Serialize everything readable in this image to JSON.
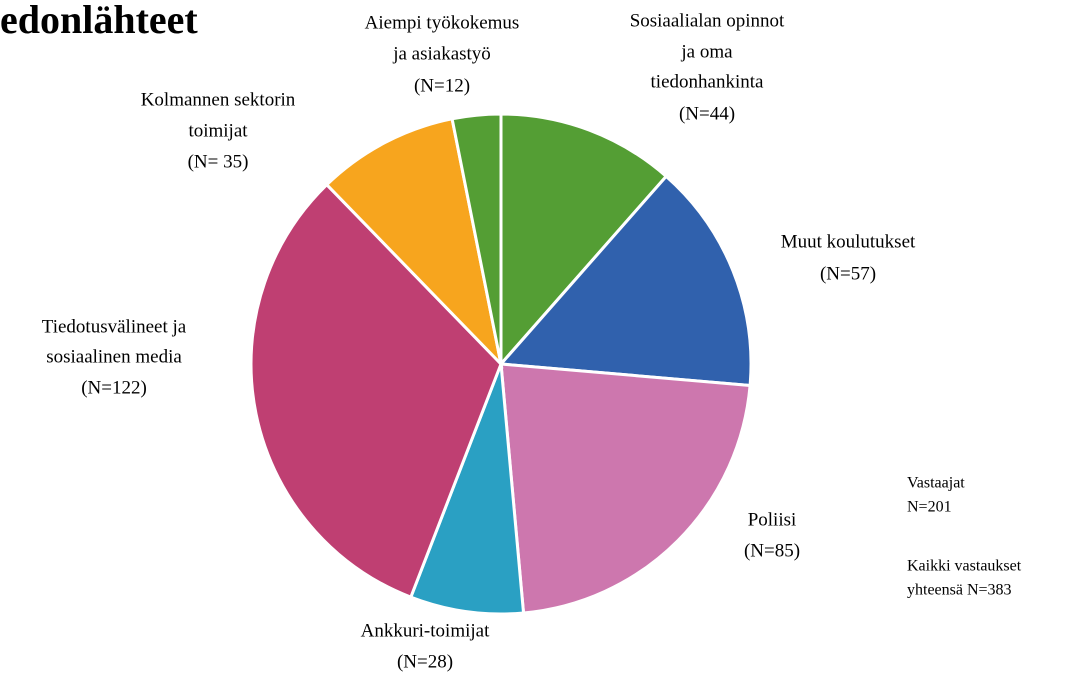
{
  "chart_data": {
    "type": "pie",
    "title": "edonlähteet",
    "categories": [
      [
        "Sosiaalialan opinnot",
        "ja oma",
        "tiedonhankinta"
      ],
      [
        "Muut koulutukset"
      ],
      [
        "Poliisi"
      ],
      [
        "Ankkuri-toimijat"
      ],
      [
        "Tiedotusvälineet ja",
        "sosiaalinen media"
      ],
      [
        "Kolmannen sektorin",
        "toimijat"
      ],
      [
        "Aiempi työkokemus",
        "ja asiakastyö"
      ]
    ],
    "values": [
      44,
      57,
      85,
      28,
      122,
      35,
      12
    ],
    "value_labels": [
      "(N=44)",
      "(N=57)",
      "(N=85)",
      "(N=28)",
      "(N=122)",
      "(N= 35)",
      "(N=12)"
    ],
    "colors": [
      "#549e34",
      "#3061ad",
      "#cd77ae",
      "#2aa0c3",
      "#bf3f72",
      "#f7a51e",
      "#549e34"
    ],
    "annotations": [
      "Vastaajat",
      "N=201",
      "Kaikki vastaukset",
      "yhteensä N=383"
    ]
  }
}
